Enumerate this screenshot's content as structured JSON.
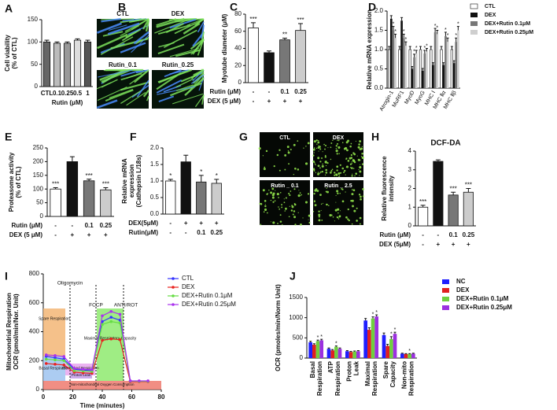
{
  "chart_data": [
    {
      "panel": "A",
      "type": "bar",
      "ylabel": [
        "Cell viability",
        "(% of CTL)"
      ],
      "categories": [
        "CTL",
        "0.1",
        "0.25",
        "0.5",
        "1"
      ],
      "xlabel": "Rutin (μM)",
      "values": [
        100,
        97,
        97,
        104,
        100
      ],
      "errors": [
        4,
        3,
        3,
        3,
        4
      ],
      "colors": [
        "#666666",
        "#bbbbbb",
        "#999999",
        "#dddddd",
        "#555555"
      ],
      "ylim": [
        0,
        150
      ],
      "yticks": [
        0,
        50,
        100,
        150
      ]
    },
    {
      "panel": "C",
      "type": "bar",
      "ylabel": [
        "Myotube diameter (μM)"
      ],
      "values": [
        64,
        35,
        50,
        61
      ],
      "errors": [
        6,
        2,
        2,
        8
      ],
      "stars": [
        "***",
        null,
        "**",
        "***"
      ],
      "colors": [
        "#ffffff",
        "#111111",
        "#777777",
        "#cccccc"
      ],
      "rows": [
        {
          "label": "Rutin (μM)",
          "values": [
            "-",
            "-",
            "0.1",
            "0.25"
          ]
        },
        {
          "label": "DEX (5 μM)",
          "values": [
            "-",
            "+",
            "+",
            "+"
          ]
        }
      ],
      "ylim": [
        0,
        80
      ],
      "yticks": [
        0,
        20,
        40,
        60,
        80
      ]
    },
    {
      "panel": "D",
      "type": "grouped-bar",
      "ylabel": [
        "Relative mRNA expression"
      ],
      "categories": [
        "Atrogin-1",
        "MuRF1",
        "MyoD",
        "MyoG",
        "MHC Ⅰ",
        "MHC Ⅱα",
        "MHC Ⅱβ"
      ],
      "ylim": [
        0,
        2.0
      ],
      "yticks": [
        {
          "value": 0,
          "label": "0.0"
        },
        {
          "value": 0.5,
          "label": "0.5"
        },
        {
          "value": 1.0,
          "label": "1.0"
        },
        {
          "value": 1.5,
          "label": "1.5"
        },
        {
          "value": 2.0,
          "label": "2.0"
        }
      ],
      "series": [
        {
          "name": "CTL",
          "color": "#ffffff",
          "values": [
            1.0,
            1.0,
            1.0,
            1.0,
            1.0,
            1.0,
            1.0
          ],
          "errors": [
            0.08,
            0.08,
            0.08,
            0.08,
            0.08,
            0.08,
            0.08
          ]
        },
        {
          "name": "DEX",
          "color": "#111111",
          "values": [
            1.8,
            1.75,
            0.5,
            0.45,
            0.6,
            0.6,
            0.65
          ],
          "errors": [
            0.08,
            0.08,
            0.06,
            0.06,
            0.06,
            0.06,
            0.06
          ]
        },
        {
          "name": "DEX+Rutin 0.1μM",
          "color": "#777777",
          "values": [
            1.5,
            1.3,
            0.8,
            0.9,
            1.45,
            1.35,
            1.2
          ],
          "errors": [
            0.1,
            0.1,
            0.08,
            0.08,
            0.1,
            0.1,
            0.1
          ],
          "stars": [
            "*",
            "*",
            "*",
            "*",
            "*",
            "*",
            "*"
          ]
        },
        {
          "name": "DEX+Rutin 0.25μM",
          "color": "#cfcfcf",
          "values": [
            1.3,
            1.1,
            0.9,
            0.95,
            1.4,
            1.2,
            1.5
          ],
          "errors": [
            0.1,
            0.1,
            0.08,
            0.08,
            0.1,
            0.1,
            0.1
          ],
          "stars": [
            "*",
            "*",
            "*",
            "*",
            "*",
            "*",
            "*"
          ]
        }
      ]
    },
    {
      "panel": "E",
      "type": "bar",
      "ylabel": [
        "Proteasome activity",
        "(% of CTL)"
      ],
      "values": [
        100,
        200,
        130,
        97
      ],
      "errors": [
        5,
        18,
        6,
        8
      ],
      "stars": [
        "***",
        null,
        "***",
        "***"
      ],
      "colors": [
        "#ffffff",
        "#111111",
        "#777777",
        "#cccccc"
      ],
      "rows": [
        {
          "label": "Rutin (μM)",
          "values": [
            "-",
            "-",
            "0.1",
            "0.25"
          ]
        },
        {
          "label": "DEX (5 μM)",
          "values": [
            "-",
            "+",
            "+",
            "+"
          ]
        }
      ],
      "ylim": [
        0,
        250
      ],
      "yticks": [
        0,
        50,
        100,
        150,
        200,
        250
      ]
    },
    {
      "panel": "F",
      "type": "bar",
      "ylabel": [
        "Relative mRNA",
        "expression",
        "(Cathepsin L/18s)"
      ],
      "values": [
        1.0,
        1.58,
        0.97,
        0.93
      ],
      "errors": [
        0.05,
        0.2,
        0.2,
        0.12
      ],
      "stars": [
        "*",
        null,
        "*",
        "*"
      ],
      "colors": [
        "#ffffff",
        "#111111",
        "#777777",
        "#cccccc"
      ],
      "rows": [
        {
          "label": "DEX(5μM)",
          "values": [
            "-",
            "+",
            "+",
            "+"
          ]
        },
        {
          "label": "Rutin(μM)",
          "values": [
            "-",
            "-",
            "0.1",
            "0.25"
          ]
        }
      ],
      "ylim": [
        0,
        2.0
      ],
      "yticks": [
        {
          "value": 0,
          "label": "0.0"
        },
        {
          "value": 0.5,
          "label": "0.5"
        },
        {
          "value": 1.0,
          "label": "1.0"
        },
        {
          "value": 1.5,
          "label": "1.5"
        },
        {
          "value": 2.0,
          "label": "2.0"
        }
      ]
    },
    {
      "panel": "H",
      "type": "bar",
      "title": "DCF-DA",
      "ylabel": [
        "Relative fluorescence",
        "intensity"
      ],
      "values": [
        1.0,
        3.45,
        1.65,
        1.8
      ],
      "errors": [
        0.1,
        0.08,
        0.15,
        0.2
      ],
      "stars": [
        "***",
        null,
        "***",
        "***"
      ],
      "colors": [
        "#ffffff",
        "#111111",
        "#777777",
        "#cccccc"
      ],
      "rows": [
        {
          "label": "Rutin (μM)",
          "values": [
            "-",
            "-",
            "0.1",
            "0.25"
          ]
        },
        {
          "label": "DEX (5μM)",
          "values": [
            "-",
            "+",
            "+",
            "+"
          ]
        }
      ],
      "ylim": [
        0,
        4
      ],
      "yticks": [
        0,
        1,
        2,
        3,
        4
      ]
    },
    {
      "panel": "I",
      "type": "line",
      "ylabel": [
        "Mitochondrial Respiration",
        "OCR (pmol/min/Nor. Unit)"
      ],
      "xlabel": "Time (minutes)",
      "xlim": [
        0,
        80
      ],
      "xticks": [
        0,
        20,
        40,
        60,
        80
      ],
      "ylim": [
        0,
        800
      ],
      "yticks": [
        0,
        200,
        400,
        600,
        800
      ],
      "annotations": [
        "Oligomycin",
        "FCCP",
        "ANTI/ROT",
        "Spare Respiration",
        "Basal Respiration",
        "ATP-Linked Respiration",
        "Proton Leak",
        "Maximal Respiratory Capacity",
        "Non-mitochondrial Oxygen Consumption"
      ],
      "x": [
        2,
        8,
        14,
        21,
        27,
        33,
        40,
        46,
        52,
        59,
        65,
        71
      ],
      "series": [
        {
          "name": "CTL",
          "color": "#3333ff",
          "values": [
            230,
            220,
            210,
            140,
            135,
            130,
            470,
            500,
            480,
            60,
            58,
            58
          ]
        },
        {
          "name": "DEX",
          "color": "#e8231f",
          "values": [
            180,
            175,
            170,
            120,
            115,
            112,
            340,
            350,
            345,
            55,
            55,
            55
          ]
        },
        {
          "name": "DEX+Rutin 0.1μM",
          "color": "#66dd44",
          "values": [
            210,
            205,
            200,
            130,
            128,
            125,
            450,
            470,
            460,
            58,
            57,
            57
          ]
        },
        {
          "name": "DEX+Rutin 0.25μM",
          "color": "#aa33ee",
          "values": [
            240,
            235,
            228,
            145,
            140,
            138,
            510,
            540,
            520,
            60,
            60,
            60
          ]
        }
      ]
    },
    {
      "panel": "J",
      "type": "grouped-bar",
      "ylabel": [
        "OCR (pmoles/min/Norm Unit)"
      ],
      "categories": [
        [
          "Basal",
          "Respiration"
        ],
        [
          "ATP",
          "Respiration"
        ],
        [
          "Proton",
          "Leak"
        ],
        [
          "Maximal",
          "Respiration"
        ],
        [
          "Spare",
          "Capacity"
        ],
        [
          "Non-mito",
          "Respiration"
        ]
      ],
      "ylim": [
        0,
        1500
      ],
      "yticks": [
        0,
        500,
        1000,
        1500
      ],
      "series": [
        {
          "name": "NC",
          "color": "#1f1fff",
          "values": [
            390,
            230,
            170,
            930,
            570,
            110
          ],
          "errors": [
            25,
            20,
            15,
            50,
            50,
            10
          ]
        },
        {
          "name": "DEX",
          "color": "#e02020",
          "values": [
            330,
            190,
            150,
            700,
            300,
            100
          ],
          "errors": [
            25,
            20,
            15,
            50,
            40,
            10
          ]
        },
        {
          "name": "DEX+Rutin 0.1μM",
          "color": "#6fcf3f",
          "values": [
            420,
            280,
            160,
            980,
            470,
            100
          ],
          "errors": [
            25,
            20,
            15,
            40,
            60,
            10
          ],
          "stars": [
            "*",
            "*",
            null,
            "*",
            "*",
            "*"
          ]
        },
        {
          "name": "DEX+Rutin 0.25μM",
          "color": "#9b30e0",
          "values": [
            440,
            230,
            170,
            1030,
            600,
            110
          ],
          "errors": [
            25,
            20,
            15,
            40,
            40,
            10
          ],
          "stars": [
            "*",
            null,
            null,
            "*",
            "*",
            null
          ]
        }
      ]
    }
  ],
  "image_panels": [
    {
      "panel": "B",
      "captions": [
        "CTL",
        "DEX",
        "Rutin_0.1",
        "Rutin_0.25"
      ]
    },
    {
      "panel": "G",
      "captions": [
        "CTL",
        "DEX",
        "Rutin _ 0.1",
        "Rutin _ 2.5"
      ]
    }
  ]
}
